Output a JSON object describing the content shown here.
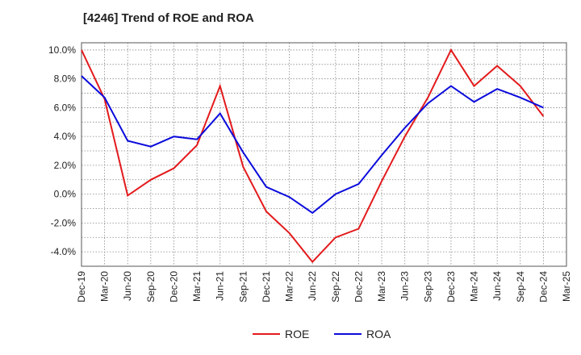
{
  "chart_data": {
    "type": "line",
    "title": "[4246]  Trend of ROE and ROA",
    "xlabel": "",
    "ylabel": "",
    "x": [
      "Dec-19",
      "Mar-20",
      "Jun-20",
      "Sep-20",
      "Dec-20",
      "Mar-21",
      "Jun-21",
      "Sep-21",
      "Dec-21",
      "Mar-22",
      "Jun-22",
      "Sep-22",
      "Dec-22",
      "Mar-23",
      "Jun-23",
      "Sep-23",
      "Dec-23",
      "Mar-24",
      "Jun-24",
      "Sep-24",
      "Dec-24",
      "Mar-25"
    ],
    "yticks": [
      "10.0%",
      "8.0%",
      "6.0%",
      "4.0%",
      "2.0%",
      "0.0%",
      "-2.0%",
      "-4.0%"
    ],
    "ylim": [
      -5.0,
      10.5
    ],
    "grid": true,
    "legend_position": "bottom-center",
    "series": [
      {
        "name": "ROE",
        "color": "#e31a1c",
        "values": [
          10.0,
          6.6,
          -0.1,
          1.0,
          1.8,
          3.4,
          7.5,
          1.9,
          -1.2,
          -2.7,
          -4.7,
          -3.0,
          -2.4,
          0.9,
          4.0,
          6.7,
          10.0,
          7.5,
          8.9,
          7.5,
          5.4,
          null
        ]
      },
      {
        "name": "ROA",
        "color": "#0b0bdc",
        "values": [
          8.2,
          6.7,
          3.7,
          3.3,
          4.0,
          3.8,
          5.6,
          2.9,
          0.5,
          -0.2,
          -1.3,
          0.0,
          0.7,
          2.7,
          4.6,
          6.3,
          7.5,
          6.4,
          7.3,
          6.7,
          6.0,
          null
        ]
      }
    ]
  }
}
